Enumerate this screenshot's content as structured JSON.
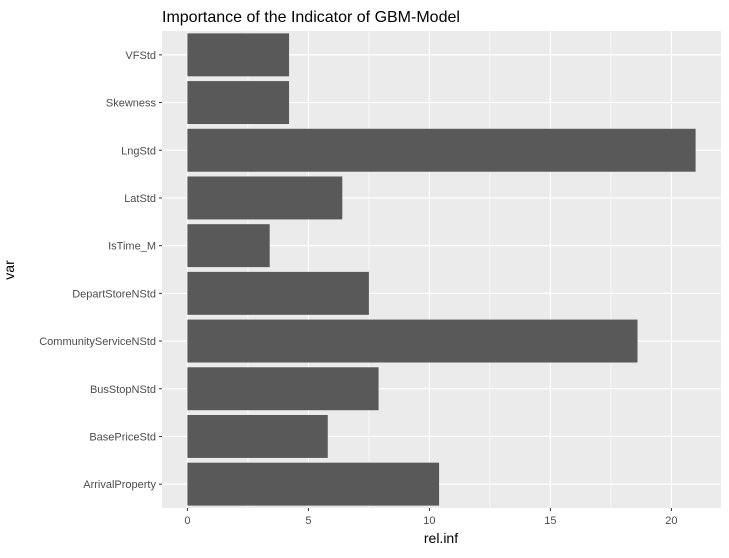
{
  "chart_data": {
    "type": "bar",
    "orientation": "horizontal",
    "title": "Importance of the Indicator of GBM-Model",
    "xlabel": "rel.inf",
    "ylabel": "var",
    "categories": [
      "ArrivalProperty",
      "BasePriceStd",
      "BusStopNStd",
      "CommunityServiceNStd",
      "DepartStoreNStd",
      "IsTime_M",
      "LatStd",
      "LngStd",
      "Skewness",
      "VFStd"
    ],
    "values": [
      10.4,
      5.8,
      7.9,
      18.6,
      7.5,
      3.4,
      6.4,
      21.0,
      4.2,
      4.2
    ],
    "xlim": [
      -1.05,
      22.05
    ],
    "xticks": [
      "0",
      "5",
      "10",
      "15",
      "20"
    ],
    "grid": true,
    "legend": "none",
    "colors": {
      "bar": "#595959",
      "panel": "#ebebeb",
      "grid": "#ffffff",
      "text": "#4d4d4d",
      "title": "#000000",
      "axis_title": "#000000"
    }
  }
}
